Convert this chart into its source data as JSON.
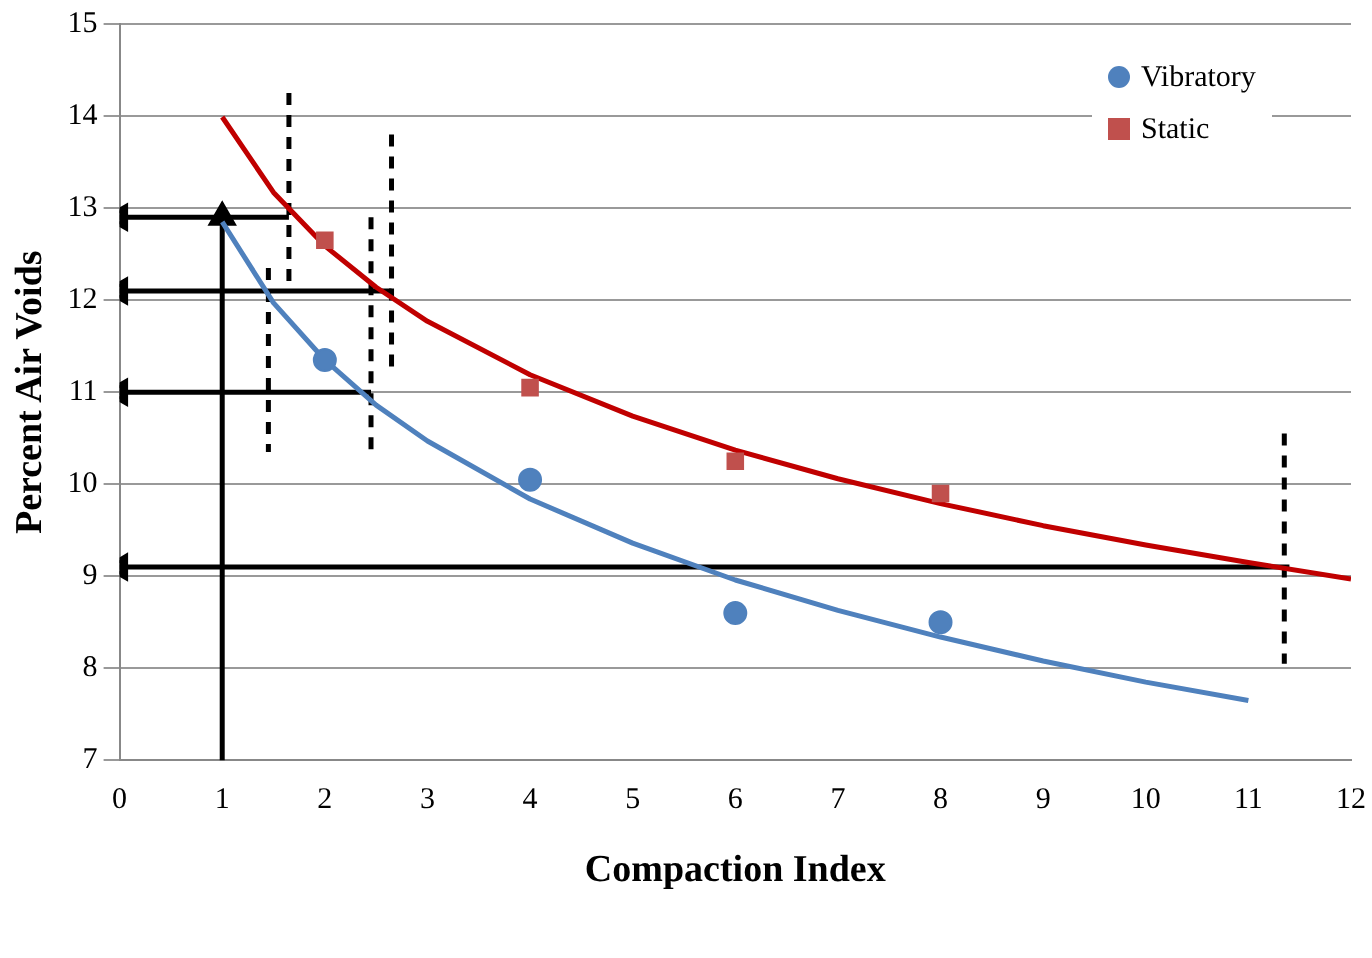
{
  "chart_data": {
    "type": "scatter",
    "xlabel": "Compaction Index",
    "ylabel": "Percent Air Voids",
    "xlim": [
      0,
      12
    ],
    "ylim": [
      7,
      15
    ],
    "xticks": [
      0,
      1,
      2,
      3,
      4,
      5,
      6,
      7,
      8,
      9,
      10,
      11,
      12
    ],
    "yticks": [
      7,
      8,
      9,
      10,
      11,
      12,
      13,
      14,
      15
    ],
    "grid": "y",
    "legend": "top right",
    "series": [
      {
        "name": "Vibratory",
        "type": "scatter",
        "color": "#4f81bd",
        "marker": "circle",
        "x": [
          2,
          4,
          6,
          8
        ],
        "values": [
          11.35,
          10.05,
          8.6,
          8.5
        ]
      },
      {
        "name": "Static",
        "type": "scatter",
        "color": "#c0504d",
        "marker": "square",
        "x": [
          2,
          4,
          6,
          8
        ],
        "values": [
          12.65,
          11.05,
          10.25,
          9.9
        ]
      },
      {
        "type": "line",
        "color": "#4f81bd",
        "marker": "none",
        "line_style": "solid",
        "x": [
          1,
          1.5,
          2,
          2.5,
          3,
          4,
          5,
          6,
          7,
          8,
          9,
          10,
          11
        ],
        "values": [
          12.85,
          11.97,
          11.35,
          10.86,
          10.47,
          9.84,
          9.36,
          8.96,
          8.63,
          8.34,
          8.08,
          7.85,
          7.65
        ]
      },
      {
        "type": "line",
        "color": "#c00000",
        "marker": "none",
        "line_style": "solid",
        "x": [
          1,
          1.5,
          2,
          2.5,
          3,
          4,
          5,
          6,
          7,
          8,
          9,
          10,
          11,
          12
        ],
        "values": [
          13.99,
          13.17,
          12.59,
          12.14,
          11.77,
          11.19,
          10.74,
          10.37,
          10.06,
          9.79,
          9.55,
          9.34,
          9.15,
          8.97
        ]
      },
      {
        "type": "line",
        "color": "#000000",
        "marker": "triangle",
        "line_style": "solid",
        "x": [
          1,
          1
        ],
        "values": [
          7,
          12.9
        ]
      },
      {
        "type": "line",
        "color": "#000000",
        "marker": "triangle",
        "line_style": "solid",
        "x": [
          1.65,
          0
        ],
        "values": [
          12.9,
          12.9
        ]
      },
      {
        "type": "line",
        "color": "#000000",
        "marker": "triangle",
        "line_style": "solid",
        "x": [
          2.65,
          0
        ],
        "values": [
          12.1,
          12.1
        ]
      },
      {
        "type": "line",
        "color": "#000000",
        "marker": "triangle",
        "line_style": "solid",
        "x": [
          2.45,
          0
        ],
        "values": [
          11,
          11
        ]
      },
      {
        "type": "line",
        "color": "#000000",
        "marker": "triangle",
        "line_style": "solid",
        "x": [
          11.4,
          0
        ],
        "values": [
          9.1,
          9.1
        ]
      },
      {
        "type": "line",
        "color": "#000000",
        "marker": "none",
        "line_style": "dashed",
        "x": [
          1.45,
          1.45
        ],
        "values": [
          12.35,
          10.35
        ]
      },
      {
        "type": "line",
        "color": "#000000",
        "marker": "none",
        "line_style": "dashed",
        "x": [
          1.65,
          1.65
        ],
        "values": [
          14.25,
          12.15
        ]
      },
      {
        "type": "line",
        "color": "#000000",
        "marker": "none",
        "line_style": "dashed",
        "x": [
          2.45,
          2.45
        ],
        "values": [
          12.9,
          10.35
        ]
      },
      {
        "type": "line",
        "color": "#000000",
        "marker": "none",
        "line_style": "dashed",
        "x": [
          2.65,
          2.65
        ],
        "values": [
          13.8,
          11.2
        ]
      },
      {
        "type": "line",
        "color": "#000000",
        "marker": "none",
        "line_style": "dashed",
        "x": [
          11.35,
          11.35
        ],
        "values": [
          10.55,
          8.05
        ]
      }
    ]
  }
}
